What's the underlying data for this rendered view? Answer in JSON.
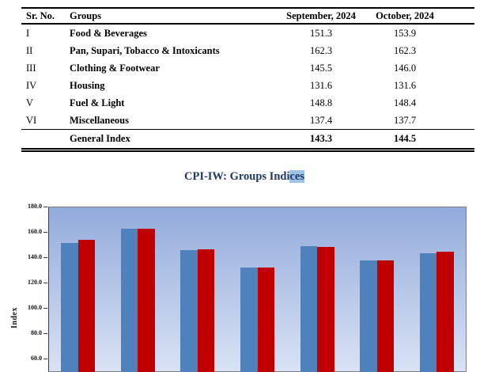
{
  "table": {
    "columns": [
      "Sr. No.",
      "Groups",
      "September, 2024",
      "October, 2024"
    ],
    "rows": [
      {
        "sr": "I",
        "group": "Food & Beverages",
        "sep": "151.3",
        "oct": "153.9"
      },
      {
        "sr": "II",
        "group": "Pan, Supari, Tobacco & Intoxicants",
        "sep": "162.3",
        "oct": "162.3"
      },
      {
        "sr": "III",
        "group": "Clothing & Footwear",
        "sep": "145.5",
        "oct": "146.0"
      },
      {
        "sr": "IV",
        "group": "Housing",
        "sep": "131.6",
        "oct": "131.6"
      },
      {
        "sr": "V",
        "group": "Fuel & Light",
        "sep": "148.8",
        "oct": "148.4"
      },
      {
        "sr": "VI",
        "group": "Miscellaneous",
        "sep": "137.4",
        "oct": "137.7"
      }
    ],
    "footer": {
      "sr": "",
      "group": "General Index",
      "sep": "143.3",
      "oct": "144.5"
    }
  },
  "chart": {
    "title_pre": "CPI-IW: Groups Indi",
    "title_highlight": "ces",
    "ylabel": "Index",
    "bg_top": "#93abdb",
    "bg_bottom": "#d9e2f4",
    "frame_color": "#7f7f7f"
  },
  "chart_data": {
    "type": "bar",
    "title": "CPI-IW: Groups Indices",
    "ylabel": "Index",
    "categories": [
      "Food & Beverages",
      "Pan, Supari, Tobacco & Intoxicants",
      "Clothing & Footwear",
      "Housing",
      "Fuel & Light",
      "Miscellaneous",
      "General Index"
    ],
    "series": [
      {
        "name": "September, 2024",
        "color": "#4f81bd",
        "values": [
          151.3,
          162.3,
          145.5,
          131.6,
          148.8,
          137.4,
          143.3
        ]
      },
      {
        "name": "October, 2024",
        "color": "#c00000",
        "values": [
          153.9,
          162.3,
          146.0,
          131.6,
          148.4,
          137.7,
          144.5
        ]
      }
    ],
    "y_ticks": [
      180.0,
      160.0,
      140.0,
      120.0,
      100.0,
      80.0,
      60.0
    ],
    "ylim_top": 180.0,
    "tick_format": "one_decimal",
    "grid": false,
    "legend_visible": false,
    "note": "chart bottom and x-axis labels cut off by screenshot edge"
  }
}
